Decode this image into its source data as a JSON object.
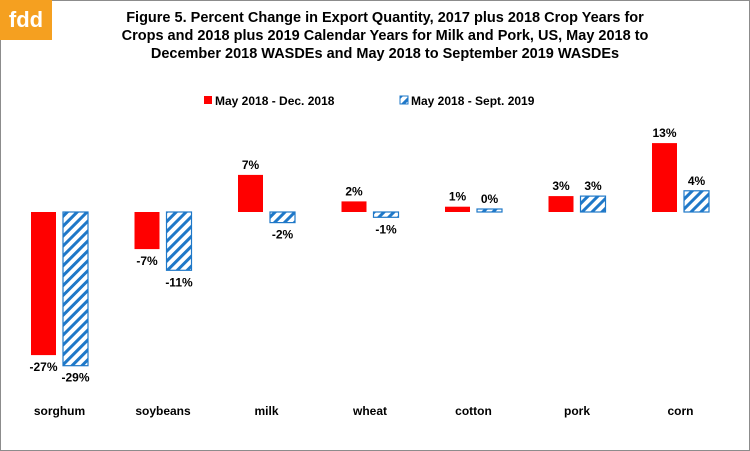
{
  "logo": {
    "text": "fdd",
    "color": "#f5a020"
  },
  "chart_data": {
    "type": "bar",
    "title_lines": [
      "Figure 5.  Percent Change in Export Quantity, 2017 plus 2018 Crop Years for",
      "Crops and 2018 plus 2019 Calendar Years for Milk and Pork, US, May 2018 to",
      "December 2018 WASDEs and May 2018 to September 2019 WASDEs"
    ],
    "categories": [
      "sorghum",
      "soybeans",
      "milk",
      "wheat",
      "cotton",
      "pork",
      "corn"
    ],
    "series": [
      {
        "name": "May 2018 - Dec. 2018",
        "values": [
          -27,
          -7,
          7,
          2,
          1,
          3,
          13
        ],
        "labels": [
          "-27%",
          "-7%",
          "7%",
          "2%",
          "1%",
          "3%",
          "13%"
        ],
        "color": "#ff0000",
        "pattern": "solid"
      },
      {
        "name": "May 2018 - Sept. 2019",
        "values": [
          -29,
          -11,
          -2,
          -1,
          0,
          3,
          4
        ],
        "labels": [
          "-29%",
          "-11%",
          "-2%",
          "-1%",
          "0%",
          "3%",
          "4%"
        ],
        "color": "#1f78c8",
        "pattern": "diagonal-hatch"
      }
    ],
    "legend_position": "top",
    "grid": false
  }
}
